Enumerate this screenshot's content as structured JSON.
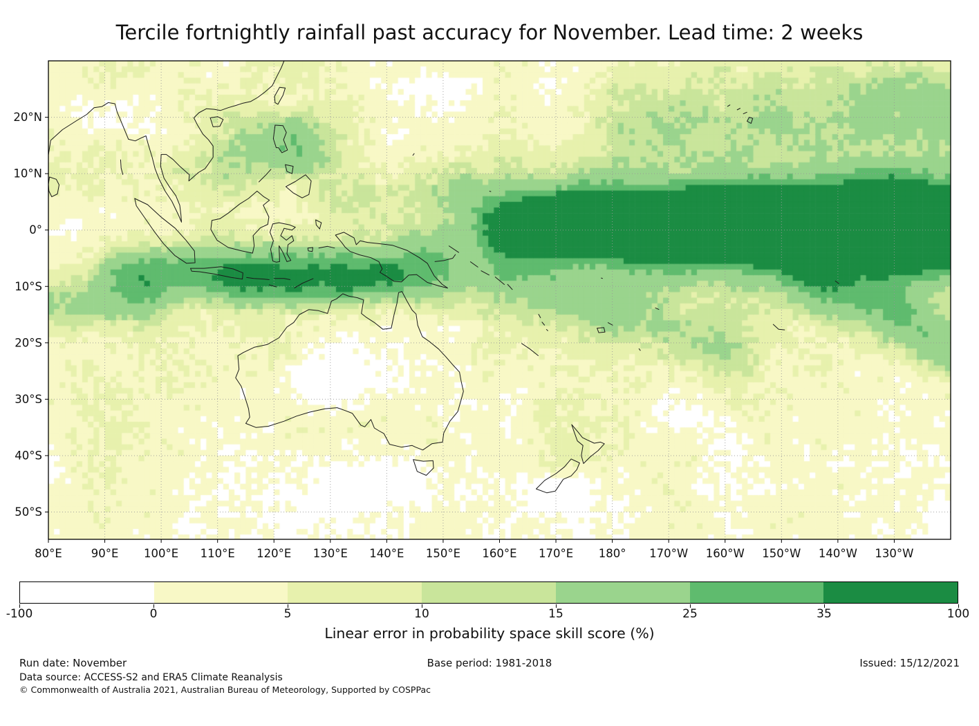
{
  "title": "Tercile fortnightly rainfall past accuracy for November. Lead time: 2 weeks",
  "chart_data": {
    "type": "heatmap",
    "title": "Tercile fortnightly rainfall past accuracy for November. Lead time: 2 weeks",
    "xlabel": "",
    "ylabel": "",
    "lon_range": [
      80,
      240
    ],
    "lat_range": [
      -54.84,
      30
    ],
    "grid": "dotted",
    "cell_size_degrees": 1,
    "x_ticks": [
      {
        "label": "80°E",
        "lon": 80
      },
      {
        "label": "90°E",
        "lon": 90
      },
      {
        "label": "100°E",
        "lon": 100
      },
      {
        "label": "110°E",
        "lon": 110
      },
      {
        "label": "120°E",
        "lon": 120
      },
      {
        "label": "130°E",
        "lon": 130
      },
      {
        "label": "140°E",
        "lon": 140
      },
      {
        "label": "150°E",
        "lon": 150
      },
      {
        "label": "160°E",
        "lon": 160
      },
      {
        "label": "170°E",
        "lon": 170
      },
      {
        "label": "180°",
        "lon": 180
      },
      {
        "label": "170°W",
        "lon": 190
      },
      {
        "label": "160°W",
        "lon": 200
      },
      {
        "label": "150°W",
        "lon": 210
      },
      {
        "label": "140°W",
        "lon": 220
      },
      {
        "label": "130°W",
        "lon": 230
      }
    ],
    "y_ticks": [
      {
        "label": "20°N",
        "lat": 20
      },
      {
        "label": "10°N",
        "lat": 10
      },
      {
        "label": "0°",
        "lat": 0
      },
      {
        "label": "10°S",
        "lat": -10
      },
      {
        "label": "20°S",
        "lat": -20
      },
      {
        "label": "30°S",
        "lat": -30
      },
      {
        "label": "40°S",
        "lat": -40
      },
      {
        "label": "50°S",
        "lat": -50
      }
    ],
    "colorbar": {
      "label": "Linear error in probability space skill score (%)",
      "orientation": "horizontal",
      "boundaries": [
        -100,
        0,
        5,
        10,
        15,
        25,
        35,
        100
      ],
      "tick_labels": [
        "-100",
        "0",
        "5",
        "10",
        "15",
        "25",
        "35",
        "100"
      ],
      "colors": [
        "#ffffff",
        "#f8f8c6",
        "#e7f1ad",
        "#c9e59b",
        "#9ad48d",
        "#5fbb6e",
        "#1b8c43"
      ]
    },
    "features": [
      {
        "region": "Equatorial central/eastern Pacific, ~165°E to map edge, 8°N–8°S",
        "skill_score_bin": "35–100 (dark green tongue, highest accuracy)"
      },
      {
        "region": "Maritime Continent band, ~95°E–150°E, 0°–12°S (Sumatra–Java–Banda–S. New Guinea)",
        "skill_score_bin": "25–100 (dark green band)"
      },
      {
        "region": "South-east diagonal extension toward 130°W–140°W, 10°S–20°S",
        "skill_score_bin": "15–35"
      },
      {
        "region": "Philippines / western North Pacific, 10°N–20°N",
        "skill_score_bin": "15–35"
      },
      {
        "region": "Tropical Indian Ocean near 10°S–15°S west of 100°E",
        "skill_score_bin": "15–25"
      },
      {
        "region": "Australian interior (~125°E–140°E, 24°S–32°S), Bay of Bengal (~20°N), scattered mid-latitude ocean patches",
        "skill_score_bin": "-100–0 (white, negative skill)"
      },
      {
        "region": "Most remaining ocean and extratropics",
        "skill_score_bin": "0–15 (pale yellow to light green mottling)"
      }
    ]
  },
  "footer": {
    "run_date": "Run date: November",
    "base_period": "Base period: 1981-2018",
    "issued": "Issued: 15/12/2021",
    "data_source": "Data source: ACCESS-S2 and ERA5 Climate Reanalysis",
    "copyright": "© Commonwealth of Australia 2021, Australian Bureau of Meteorology, Supported by COSPPac"
  }
}
